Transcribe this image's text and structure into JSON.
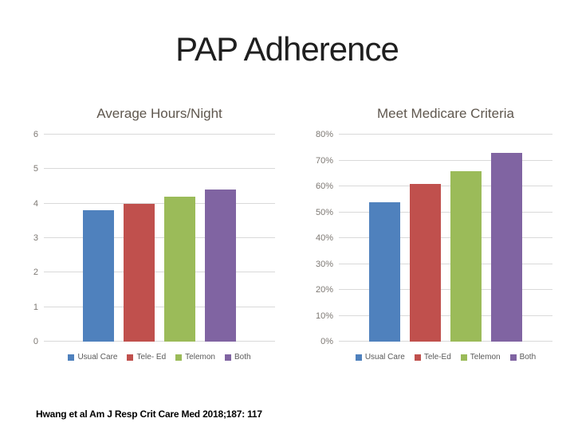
{
  "slide": {
    "title": "PAP Adherence"
  },
  "citation": "Hwang et al Am J Resp Crit Care Med 2018;187: 117",
  "colors": {
    "series": [
      "#4F81BD",
      "#C0504D",
      "#9BBB59",
      "#8064A2"
    ],
    "gridline": "#D9D9D9",
    "chart_title": "#5F574E",
    "axis_label": "#7D7873",
    "legend_label": "#595959"
  },
  "chart_data": [
    {
      "type": "bar",
      "title": "Average Hours/Night",
      "categories": [
        "Usual Care",
        "Tele- Ed",
        "Telemon",
        "Both"
      ],
      "values": [
        3.8,
        4.0,
        4.2,
        4.4
      ],
      "xlabel": "",
      "ylabel": "",
      "ylim": [
        0,
        6
      ],
      "ytick_step": 1,
      "ytick_suffix": "",
      "grid": true,
      "legend_position": "bottom"
    },
    {
      "type": "bar",
      "title": "Meet Medicare Criteria",
      "categories": [
        "Usual Care",
        "Tele-Ed",
        "Telemon",
        "Both"
      ],
      "values": [
        54,
        61,
        66,
        73
      ],
      "xlabel": "",
      "ylabel": "",
      "ylim": [
        0,
        80
      ],
      "ytick_step": 10,
      "ytick_suffix": "%",
      "grid": true,
      "legend_position": "bottom"
    }
  ]
}
